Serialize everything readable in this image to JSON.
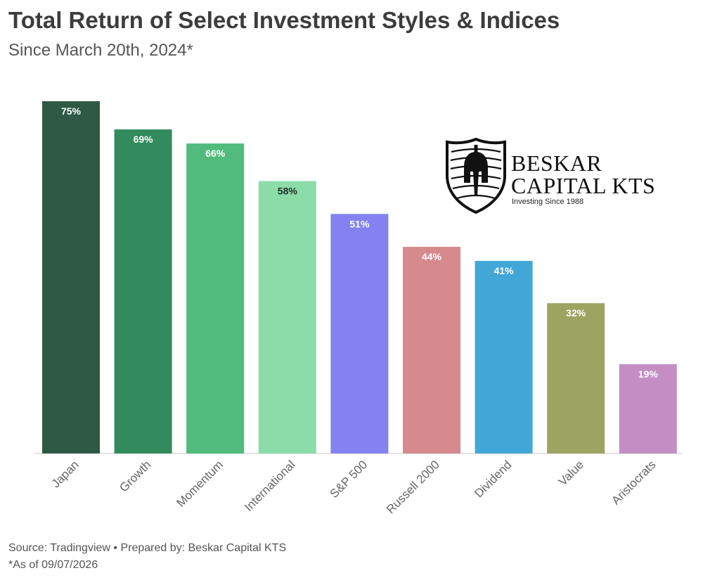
{
  "chart_data": {
    "type": "bar",
    "title": "Total Return of Select Investment Styles & Indices",
    "subtitle": "Since March 20th, 2024*",
    "categories": [
      "Japan",
      "Growth",
      "Momentum",
      "International",
      "S&P 500",
      "Russell 2000",
      "Dividend",
      "Value",
      "Aristocrats"
    ],
    "values": [
      75,
      69,
      66,
      58,
      51,
      44,
      41,
      32,
      19
    ],
    "data_labels": [
      "75%",
      "69%",
      "66%",
      "58%",
      "51%",
      "44%",
      "41%",
      "32%",
      "19%"
    ],
    "colors": [
      "#2e5945",
      "#318b5c",
      "#50bb7c",
      "#8bdca8",
      "#8382f0",
      "#d68a8d",
      "#42a7d6",
      "#9ca461",
      "#c48ec4"
    ],
    "label_colors": [
      "#ffffff",
      "#ffffff",
      "#ffffff",
      "#1f2f26",
      "#ffffff",
      "#ffffff",
      "#ffffff",
      "#ffffff",
      "#ffffff"
    ],
    "ylim": [
      0,
      75
    ],
    "grid": false,
    "legend": "none",
    "xlabel": "",
    "ylabel": ""
  },
  "logo": {
    "name_line1": "BESKAR",
    "name_line2": "CAPITAL KTS",
    "tagline": "Investing Since 1988",
    "icon": "spartan-helmet-shield-icon"
  },
  "footer": {
    "source": "Source: Tradingview • Prepared by: Beskar Capital KTS",
    "note": "*As of 09/07/2026"
  }
}
